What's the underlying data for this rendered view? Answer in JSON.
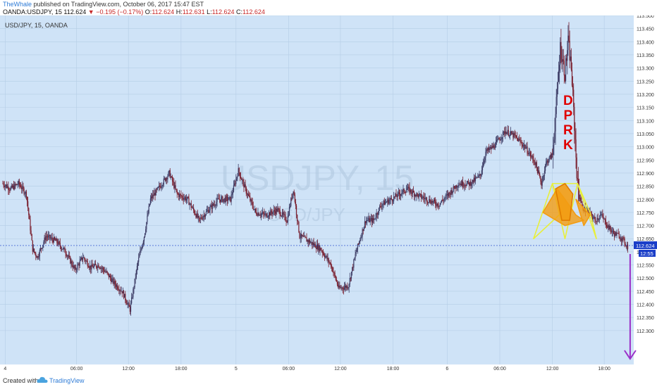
{
  "header": {
    "author": "TheWhale",
    "published": "published on TradingView.com, October 06, 2017 15:47 EST",
    "symbol": "OANDA:USDJPY, 15",
    "last": "112.624",
    "change": "−0.195 (−0.17%)",
    "o_label": "O:",
    "o_value": "112.624",
    "h_label": "H:",
    "h_value": "112.631",
    "l_label": "L:",
    "l_value": "112.624",
    "c_label": "C:",
    "c_value": "112.624"
  },
  "footer": {
    "created_with": "Created with",
    "brand": "TradingView"
  },
  "colors": {
    "plot_bg": "#cfe3f7",
    "grid": "#b5cde6",
    "candle_up": "#3d3d66",
    "candle_down": "#7a1f2e",
    "price_label_bg": "#1a3ec8",
    "arrow": "#9b30c8",
    "pattern_fill": "#f39c12",
    "pattern_outline": "#e8ef3a",
    "annotation_text": "#e00000"
  },
  "chart_data": {
    "type": "candlestick",
    "title": "USD/JPY, 15, OANDA",
    "watermark_symbol": "USDJPY, 15",
    "watermark_pair": "USD/JPY",
    "annotation": "DPRK",
    "ylim": [
      112.23,
      113.5
    ],
    "y_ticks": [
      "113.500",
      "113.450",
      "113.400",
      "113.350",
      "113.300",
      "113.250",
      "113.200",
      "113.150",
      "113.100",
      "113.050",
      "113.000",
      "112.950",
      "112.900",
      "112.850",
      "112.800",
      "112.750",
      "112.700",
      "112.650",
      "112.600",
      "112.550",
      "112.500",
      "112.450",
      "112.400",
      "112.350",
      "112.300"
    ],
    "x_ticks": [
      "4",
      "06:00",
      "12:00",
      "18:00",
      "5",
      "06:00",
      "12:00",
      "18:00",
      "6",
      "06:00",
      "12:00",
      "18:00",
      "9",
      "05:00"
    ],
    "x_tick_index": [
      3,
      94,
      160,
      227,
      297,
      364,
      430,
      497,
      566,
      633,
      700,
      766,
      835,
      887
    ],
    "current_price": "112.624",
    "countdown": "12:55",
    "path": [
      [
        0,
        112.86
      ],
      [
        10,
        112.84
      ],
      [
        20,
        112.86
      ],
      [
        30,
        112.82
      ],
      [
        38,
        112.61
      ],
      [
        44,
        112.58
      ],
      [
        55,
        112.66
      ],
      [
        68,
        112.64
      ],
      [
        80,
        112.6
      ],
      [
        92,
        112.53
      ],
      [
        102,
        112.58
      ],
      [
        112,
        112.54
      ],
      [
        122,
        112.55
      ],
      [
        132,
        112.52
      ],
      [
        142,
        112.48
      ],
      [
        152,
        112.45
      ],
      [
        162,
        112.38
      ],
      [
        172,
        112.56
      ],
      [
        180,
        112.66
      ],
      [
        188,
        112.8
      ],
      [
        198,
        112.84
      ],
      [
        212,
        112.9
      ],
      [
        222,
        112.82
      ],
      [
        235,
        112.8
      ],
      [
        250,
        112.72
      ],
      [
        262,
        112.76
      ],
      [
        275,
        112.8
      ],
      [
        290,
        112.8
      ],
      [
        300,
        112.91
      ],
      [
        310,
        112.83
      ],
      [
        322,
        112.75
      ],
      [
        335,
        112.74
      ],
      [
        350,
        112.76
      ],
      [
        362,
        112.72
      ],
      [
        370,
        112.84
      ],
      [
        378,
        112.66
      ],
      [
        390,
        112.64
      ],
      [
        405,
        112.61
      ],
      [
        418,
        112.55
      ],
      [
        428,
        112.46
      ],
      [
        440,
        112.47
      ],
      [
        450,
        112.6
      ],
      [
        462,
        112.72
      ],
      [
        472,
        112.72
      ],
      [
        482,
        112.78
      ],
      [
        495,
        112.8
      ],
      [
        505,
        112.82
      ],
      [
        515,
        112.84
      ],
      [
        525,
        112.82
      ],
      [
        540,
        112.8
      ],
      [
        555,
        112.78
      ],
      [
        568,
        112.82
      ],
      [
        580,
        112.86
      ],
      [
        595,
        112.86
      ],
      [
        608,
        112.89
      ],
      [
        615,
        112.98
      ],
      [
        625,
        113.0
      ],
      [
        640,
        113.06
      ],
      [
        652,
        113.04
      ],
      [
        665,
        113.0
      ],
      [
        678,
        112.94
      ],
      [
        686,
        112.86
      ],
      [
        692,
        112.94
      ],
      [
        700,
        112.97
      ],
      [
        706,
        113.2
      ],
      [
        710,
        113.38
      ],
      [
        716,
        113.28
      ],
      [
        720,
        113.4
      ],
      [
        724,
        113.3
      ],
      [
        728,
        113.08
      ],
      [
        732,
        112.85
      ],
      [
        738,
        112.77
      ],
      [
        746,
        112.75
      ],
      [
        754,
        112.72
      ],
      [
        762,
        112.74
      ],
      [
        770,
        112.7
      ],
      [
        778,
        112.67
      ],
      [
        786,
        112.66
      ],
      [
        796,
        112.62
      ]
    ]
  }
}
